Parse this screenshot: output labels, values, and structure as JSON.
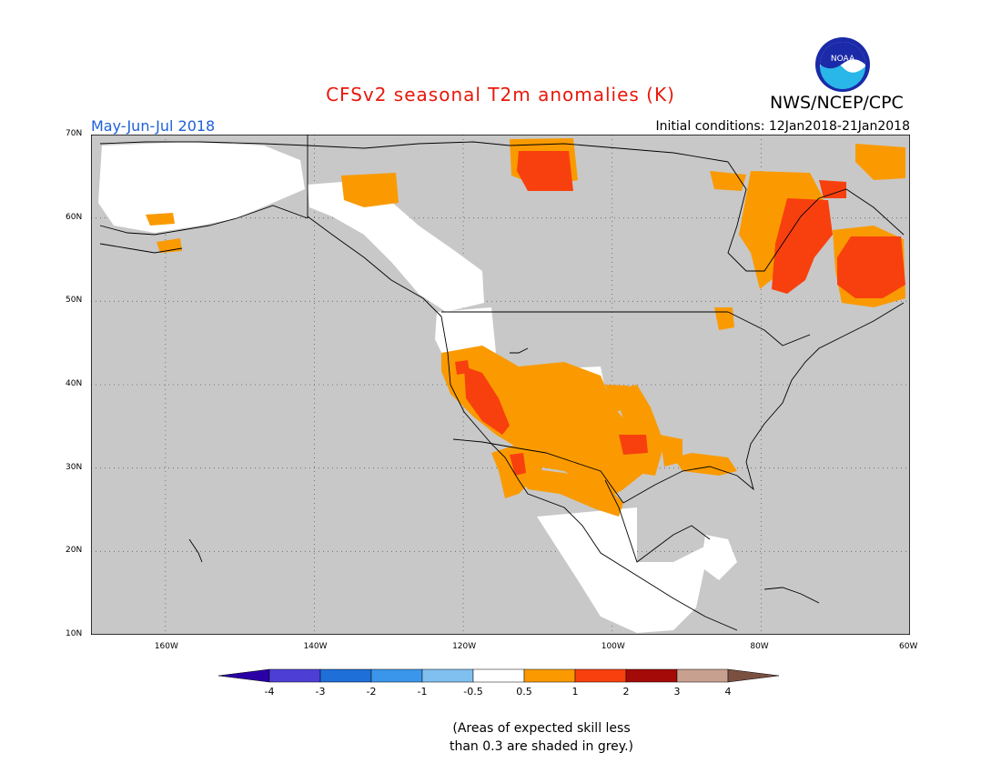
{
  "header": {
    "title": "CFSv2 seasonal T2m anomalies (K)",
    "agency": "NWS/NCEP/CPC",
    "season": "May-Jun-Jul 2018",
    "initial_conditions": "Initial conditions: 12Jan2018-21Jan2018",
    "logo_text": "NOAA"
  },
  "map": {
    "lat_labels": [
      "70N",
      "60N",
      "50N",
      "40N",
      "30N",
      "20N",
      "10N"
    ],
    "lon_labels": [
      "160W",
      "140W",
      "120W",
      "100W",
      "80W",
      "60W"
    ],
    "lat_range": [
      10,
      70
    ],
    "lon_range": [
      -170,
      -60
    ]
  },
  "legend": {
    "tick_labels": [
      "-4",
      "-3",
      "-2",
      "-1",
      "-0.5",
      "0.5",
      "1",
      "2",
      "3",
      "4"
    ],
    "colors": [
      "#2a00a6",
      "#4d3fd6",
      "#1f6fd8",
      "#3a96ea",
      "#80c0f0",
      "#ffffff",
      "#fa9a00",
      "#f8400e",
      "#a40a08",
      "#c8a090",
      "#7a5040"
    ]
  },
  "note": {
    "line1": "(Areas of expected skill less",
    "line2": "than 0.3 are shaded in grey.)"
  },
  "colors": {
    "skill_grey": "#c8c8c8",
    "orange": "#fa9a00",
    "red": "#f8400e",
    "title_red": "#e8180c",
    "season_blue": "#1f5fd8"
  }
}
